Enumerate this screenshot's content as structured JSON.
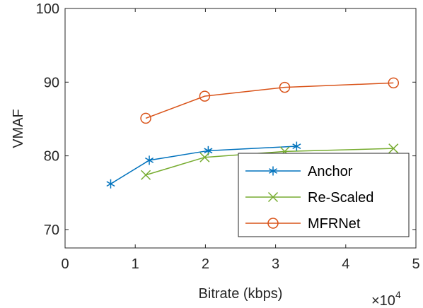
{
  "chart_data": {
    "type": "line",
    "title": "",
    "xlabel": "Bitrate (kbps)",
    "ylabel": "VMAF",
    "x_exponent_label": "×10",
    "x_exponent_power": "4",
    "x_scale": 10000,
    "xlim": [
      0,
      50000
    ],
    "ylim": [
      67.5,
      100
    ],
    "xticks": [
      0,
      10000,
      20000,
      30000,
      40000,
      50000
    ],
    "xtick_labels": [
      "0",
      "1",
      "2",
      "3",
      "4",
      "5"
    ],
    "yticks": [
      70,
      80,
      90,
      100
    ],
    "ytick_labels": [
      "70",
      "80",
      "90",
      "100"
    ],
    "grid": false,
    "legend_position": "bottom-right",
    "series": [
      {
        "name": "Anchor",
        "color": "#0072BD",
        "marker": "asterisk",
        "x": [
          6500,
          12000,
          20400,
          33000
        ],
        "y": [
          76.2,
          79.4,
          80.7,
          81.3
        ]
      },
      {
        "name": "Re-Scaled",
        "color": "#77AC30",
        "marker": "x",
        "x": [
          11500,
          19900,
          31300,
          46800
        ],
        "y": [
          77.4,
          79.8,
          80.6,
          81.0
        ]
      },
      {
        "name": "MFRNet",
        "color": "#D95319",
        "marker": "circle",
        "x": [
          11500,
          19900,
          31300,
          46800
        ],
        "y": [
          85.1,
          88.1,
          89.3,
          89.9
        ]
      }
    ]
  }
}
